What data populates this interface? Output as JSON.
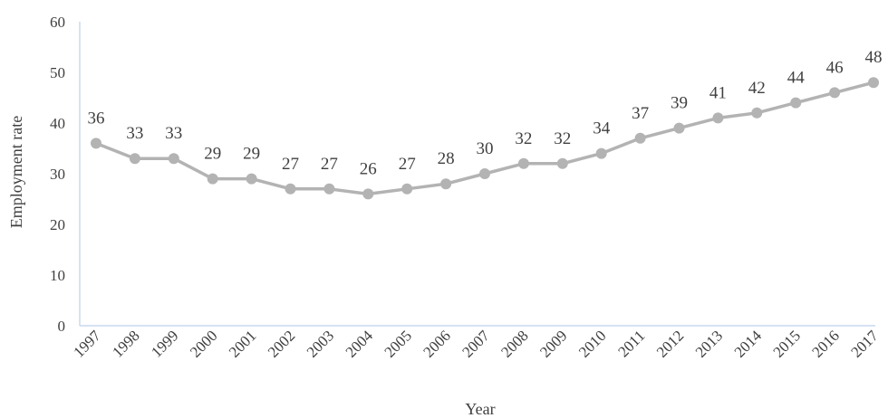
{
  "chart_data": {
    "type": "line",
    "title": "",
    "xlabel": "Year",
    "ylabel": "Employment rate",
    "x": [
      "1997",
      "1998",
      "1999",
      "2000",
      "2001",
      "2002",
      "2003",
      "2004",
      "2005",
      "2006",
      "2007",
      "2008",
      "2009",
      "2010",
      "2011",
      "2012",
      "2013",
      "2014",
      "2015",
      "2016",
      "2017"
    ],
    "series": [
      {
        "values": [
          36,
          33,
          33,
          29,
          29,
          27,
          27,
          26,
          27,
          28,
          30,
          32,
          32,
          34,
          37,
          39,
          41,
          42,
          44,
          46,
          48
        ],
        "color": "#b3b3b3",
        "marker": "circle",
        "data_labels": true
      }
    ],
    "ylim": [
      0,
      60
    ],
    "yticks": [
      0,
      10,
      20,
      30,
      40,
      50,
      60
    ],
    "grid": false,
    "legend": "none",
    "x_tick_rotation_deg": -45,
    "axis_color": "#c9d9ef"
  }
}
